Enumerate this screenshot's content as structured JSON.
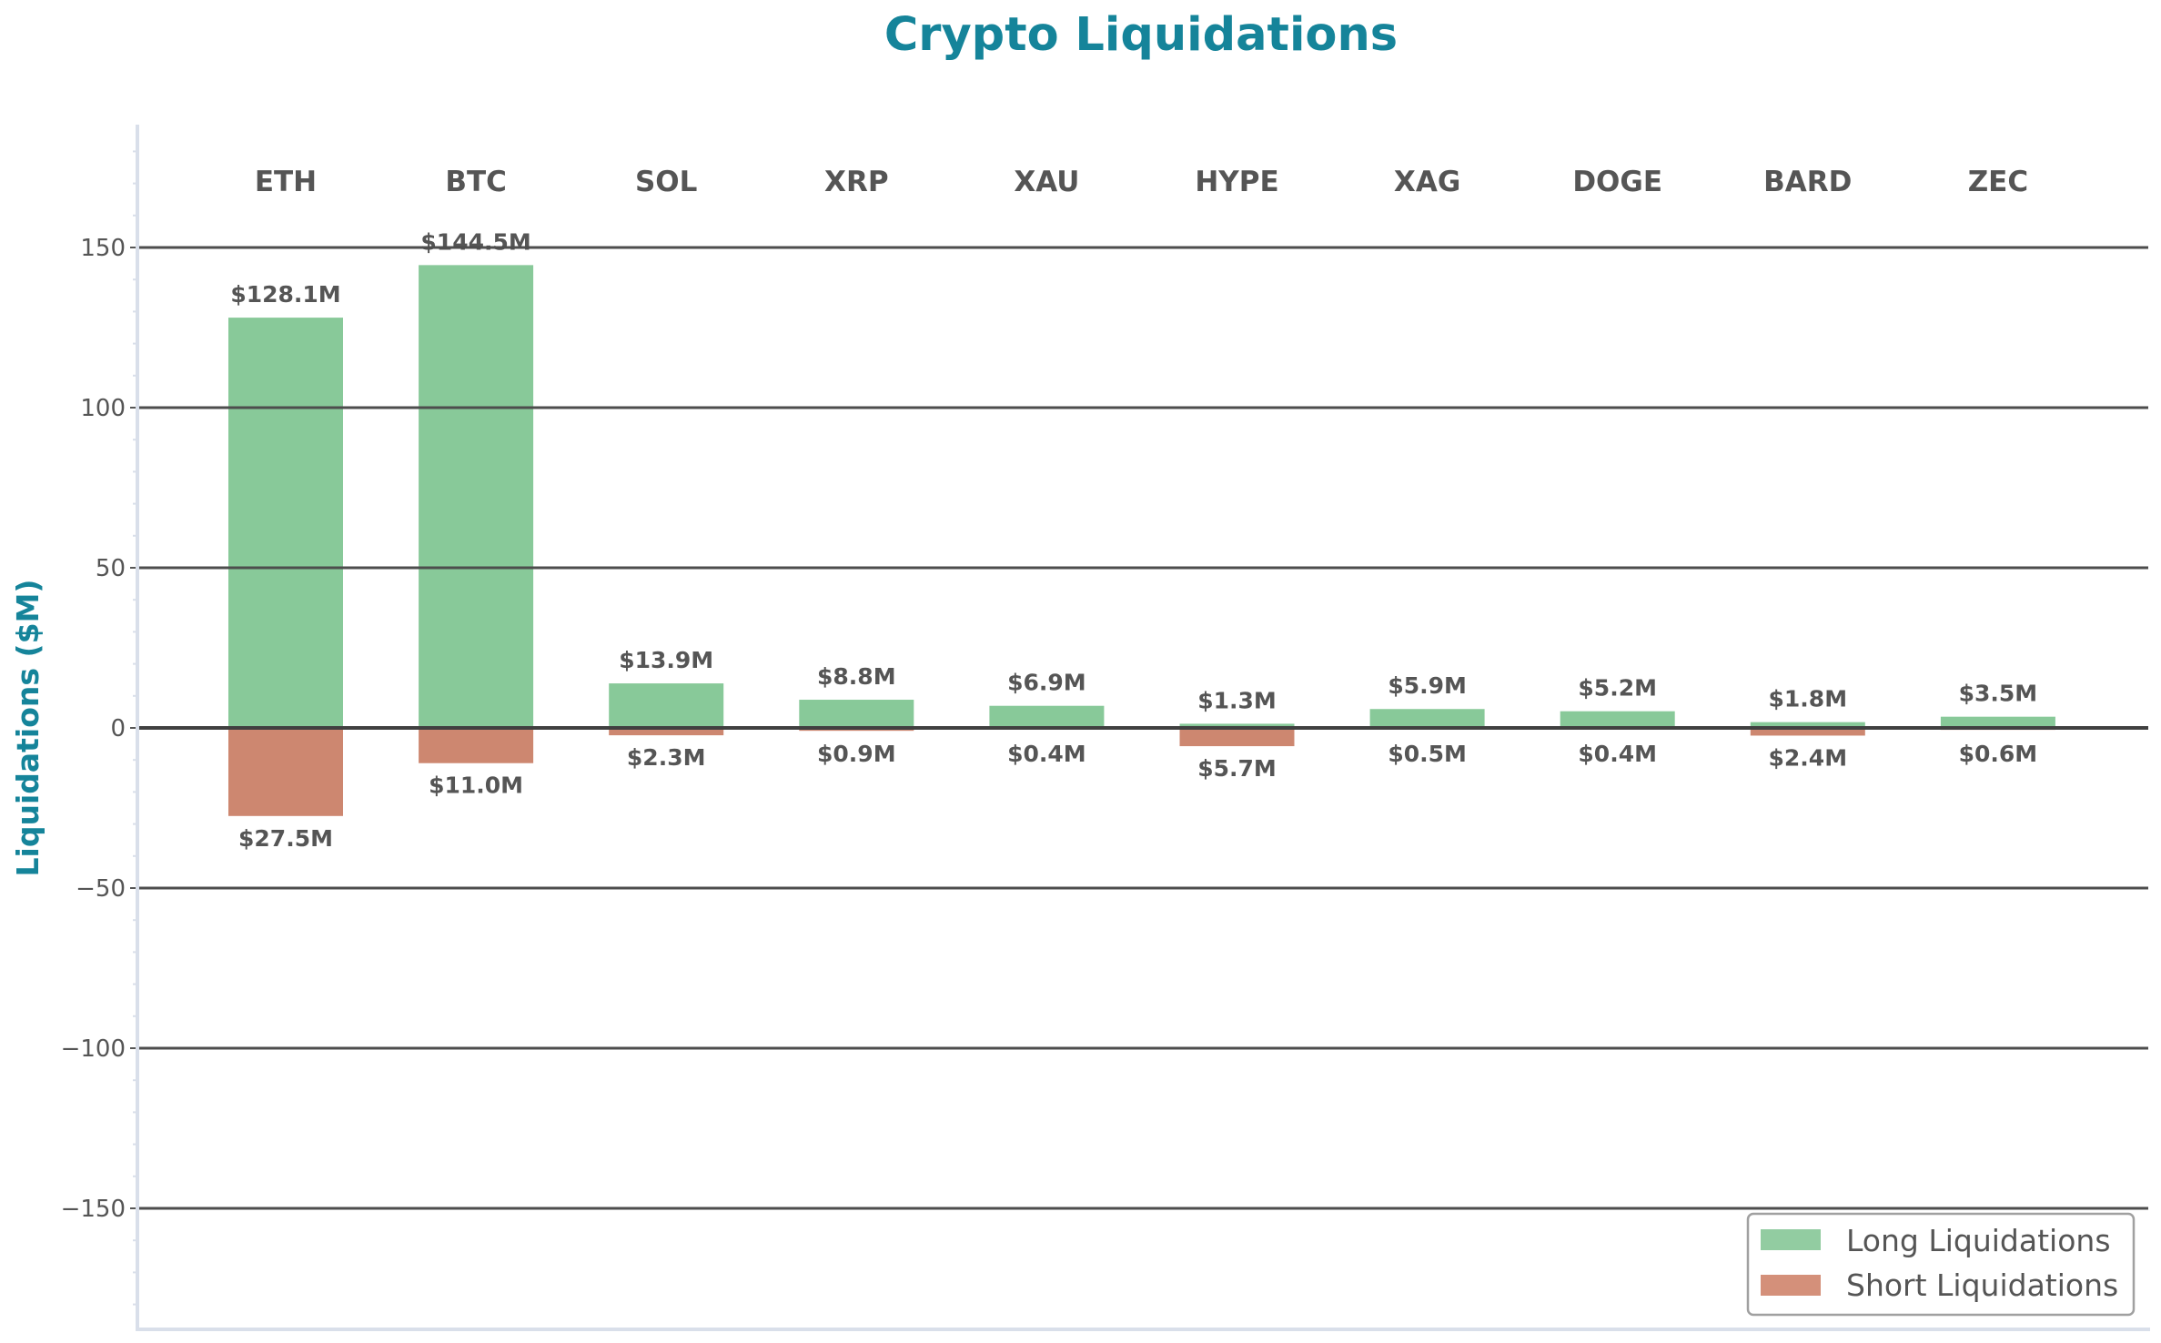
{
  "title": "Crypto Liquidations",
  "colors": {
    "title": "#15849a",
    "long": "#88c999",
    "short": "#cd8770",
    "text": "#555555",
    "grid": "#4d4d4d",
    "spine": "#d9dfea",
    "zero_line": "#404040"
  },
  "legend": {
    "items": [
      {
        "label": "Long Liquidations",
        "color": "#92cca1"
      },
      {
        "label": "Short Liquidations",
        "color": "#d4907a"
      }
    ]
  },
  "chart_data": {
    "type": "bar",
    "title": "Crypto Liquidations",
    "xlabel": "",
    "ylabel": "Liquidations ($M)",
    "ylim": [
      -188,
      188
    ],
    "yticks": [
      -150,
      -100,
      -50,
      0,
      50,
      100,
      150
    ],
    "ytick_labels": [
      "−150",
      "−100",
      "−50",
      "0",
      "50",
      "100",
      "150"
    ],
    "grid": true,
    "legend_position": "lower right",
    "categories": [
      "ETH",
      "BTC",
      "SOL",
      "XRP",
      "XAU",
      "HYPE",
      "XAG",
      "DOGE",
      "BARD",
      "ZEC"
    ],
    "series": [
      {
        "name": "Long Liquidations",
        "values": [
          128.1,
          144.5,
          13.9,
          8.8,
          6.9,
          1.3,
          5.9,
          5.2,
          1.8,
          3.5
        ],
        "labels": [
          "$128.1M",
          "$144.5M",
          "$13.9M",
          "$8.8M",
          "$6.9M",
          "$1.3M",
          "$5.9M",
          "$5.2M",
          "$1.8M",
          "$3.5M"
        ]
      },
      {
        "name": "Short Liquidations",
        "values": [
          -27.5,
          -11.0,
          -2.3,
          -0.9,
          -0.4,
          -5.7,
          -0.5,
          -0.4,
          -2.4,
          -0.6
        ],
        "labels": [
          "$27.5M",
          "$11.0M",
          "$2.3M",
          "$0.9M",
          "$0.4M",
          "$5.7M",
          "$0.5M",
          "$0.4M",
          "$2.4M",
          "$0.6M"
        ]
      }
    ]
  }
}
